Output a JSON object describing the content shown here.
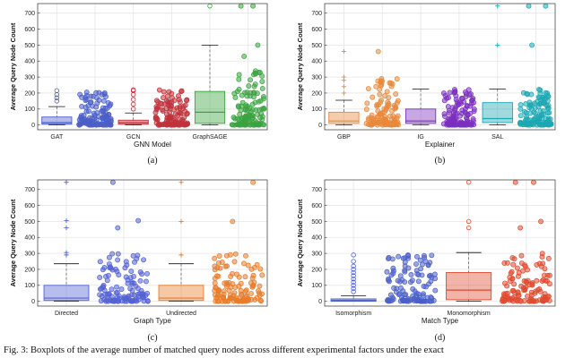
{
  "colors": {
    "gridline": "#e6e6e6",
    "axis": "#333333",
    "whisker": "#555555",
    "palette": {
      "blue": "#4a5fc8",
      "red": "#c0323b",
      "green": "#3aa33f",
      "orange": "#e8883a",
      "purple": "#7b2fbf",
      "teal": "#1ca7b3",
      "indigo": "#5462d4",
      "darkorange": "#e87c2a",
      "tomato": "#e04a2f"
    }
  },
  "caption": "Fig. 3: Boxplots of the average number of matched query nodes across different experimental factors under the exact",
  "chart_data": [
    {
      "type": "box",
      "id": "a",
      "sublabel": "(a)",
      "xlabel": "GNN Model",
      "ylabel": "Average Query Node Count",
      "ylim": [
        -30,
        760
      ],
      "yticks": [
        0,
        100,
        200,
        300,
        400,
        500,
        600,
        700
      ],
      "groups": [
        {
          "label": "GAT",
          "color": "blue",
          "q1": 5,
          "median": 15,
          "q3": 50,
          "whislo": 0,
          "whishi": 115,
          "outliers": [
            150,
            170,
            190,
            215
          ],
          "jitter_max": 215,
          "jitter_extra": [
            180,
            200
          ]
        },
        {
          "label": "GCN",
          "color": "red",
          "q1": 5,
          "median": 15,
          "q3": 30,
          "whislo": 0,
          "whishi": 75,
          "outliers": [
            100,
            130,
            160,
            190,
            215,
            220
          ],
          "jitter_max": 220,
          "jitter_extra": [
            180,
            210
          ]
        },
        {
          "label": "GraphSAGE",
          "color": "green",
          "q1": 10,
          "median": 80,
          "q3": 210,
          "whislo": 0,
          "whishi": 500,
          "outliers": [
            745
          ],
          "jitter_max": 340,
          "jitter_extra": [
            430,
            500,
            745,
            745
          ]
        }
      ]
    },
    {
      "type": "box",
      "id": "b",
      "sublabel": "(b)",
      "xlabel": "Explainer",
      "ylabel": "Average Query Node Count",
      "ylim": [
        -30,
        760
      ],
      "yticks": [
        0,
        100,
        200,
        300,
        400,
        500,
        600,
        700
      ],
      "groups": [
        {
          "label": "GBP",
          "color": "orange",
          "q1": 10,
          "median": 25,
          "q3": 80,
          "whislo": 0,
          "whishi": 155,
          "outliers": [
            200,
            240,
            280,
            300,
            460
          ],
          "jitter_max": 300,
          "jitter_extra": [
            460
          ]
        },
        {
          "label": "IG",
          "color": "purple",
          "q1": 10,
          "median": 25,
          "q3": 100,
          "whislo": 0,
          "whishi": 225,
          "outliers": [],
          "jitter_max": 225,
          "jitter_extra": [
            210,
            220
          ]
        },
        {
          "label": "SAL",
          "color": "teal",
          "q1": 15,
          "median": 40,
          "q3": 140,
          "whislo": 0,
          "whishi": 225,
          "outliers": [
            500,
            745
          ],
          "jitter_max": 225,
          "jitter_extra": [
            500,
            745,
            745
          ]
        }
      ]
    },
    {
      "type": "box",
      "id": "c",
      "sublabel": "(c)",
      "xlabel": "Graph Type",
      "ylabel": "Average Query Node Count",
      "ylim": [
        -30,
        760
      ],
      "yticks": [
        0,
        100,
        200,
        300,
        400,
        500,
        600,
        700
      ],
      "groups": [
        {
          "label": "Directed",
          "color": "indigo",
          "q1": 5,
          "median": 20,
          "q3": 100,
          "whislo": 0,
          "whishi": 235,
          "outliers": [
            290,
            305,
            460,
            505,
            745
          ],
          "jitter_max": 300,
          "jitter_extra": [
            460,
            505,
            745
          ]
        },
        {
          "label": "Undirected",
          "color": "darkorange",
          "q1": 5,
          "median": 20,
          "q3": 100,
          "whislo": 0,
          "whishi": 235,
          "outliers": [
            290,
            500,
            745
          ],
          "jitter_max": 300,
          "jitter_extra": [
            500,
            745
          ]
        }
      ]
    },
    {
      "type": "box",
      "id": "d",
      "sublabel": "(d)",
      "xlabel": "Match Type",
      "ylabel": "Average Query Node Count",
      "ylim": [
        -30,
        760
      ],
      "yticks": [
        0,
        100,
        200,
        300,
        400,
        500,
        600,
        700
      ],
      "groups": [
        {
          "label": "Isomorphism",
          "color": "blue",
          "q1": 0,
          "median": 5,
          "q3": 15,
          "whislo": 0,
          "whishi": 35,
          "outliers": [
            60,
            80,
            100,
            120,
            140,
            160,
            180,
            200,
            220,
            250,
            290
          ],
          "jitter_max": 290,
          "jitter_extra": [
            220,
            250
          ]
        },
        {
          "label": "Monomorphism",
          "color": "tomato",
          "q1": 10,
          "median": 70,
          "q3": 180,
          "whislo": 0,
          "whishi": 305,
          "outliers": [
            460,
            500,
            745
          ],
          "jitter_max": 300,
          "jitter_extra": [
            460,
            500,
            745,
            745
          ]
        }
      ]
    }
  ]
}
